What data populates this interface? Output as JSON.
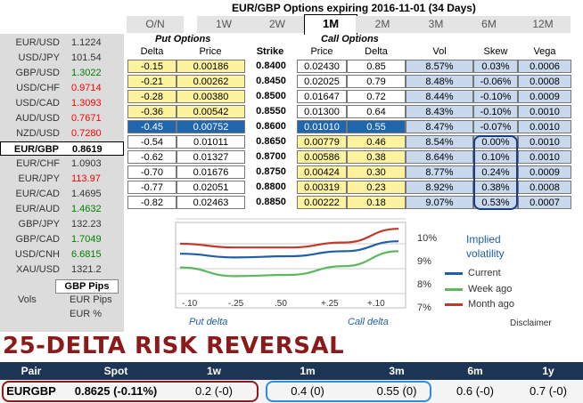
{
  "title": "EUR/GBP Options expiring 2016-11-01 (34 Days)",
  "tabs": [
    "O/N",
    "1W",
    "2W",
    "1M",
    "2M",
    "3M",
    "6M",
    "12M"
  ],
  "active_tab": "1M",
  "pairs": [
    {
      "name": "EUR/USD",
      "value": "1.1224",
      "trend": "flat"
    },
    {
      "name": "USD/JPY",
      "value": "101.54",
      "trend": "flat"
    },
    {
      "name": "GBP/USD",
      "value": "1.3022",
      "trend": "up"
    },
    {
      "name": "USD/CHF",
      "value": "0.9714",
      "trend": "down"
    },
    {
      "name": "USD/CAD",
      "value": "1.3093",
      "trend": "down"
    },
    {
      "name": "AUD/USD",
      "value": "0.7671",
      "trend": "down"
    },
    {
      "name": "NZD/USD",
      "value": "0.7280",
      "trend": "down"
    },
    {
      "name": "EUR/GBP",
      "value": "0.8619",
      "trend": "selected"
    },
    {
      "name": "EUR/CHF",
      "value": "1.0903",
      "trend": "flat"
    },
    {
      "name": "EUR/JPY",
      "value": "113.97",
      "trend": "down"
    },
    {
      "name": "EUR/CAD",
      "value": "1.4695",
      "trend": "flat"
    },
    {
      "name": "EUR/AUD",
      "value": "1.4632",
      "trend": "up"
    },
    {
      "name": "GBP/JPY",
      "value": "132.23",
      "trend": "flat"
    },
    {
      "name": "GBP/CAD",
      "value": "1.7049",
      "trend": "up"
    },
    {
      "name": "USD/CNH",
      "value": "6.6815",
      "trend": "up"
    },
    {
      "name": "XAU/USD",
      "value": "1321.2",
      "trend": "flat"
    }
  ],
  "left_footer": {
    "pips_button": "GBP Pips",
    "vols_label": "Vols",
    "eur_pips": "EUR Pips",
    "eur_pct": "EUR %"
  },
  "groups": {
    "put": "Put Options",
    "call": "Call Options"
  },
  "headers": {
    "put_delta": "Delta",
    "put_price": "Price",
    "strike": "Strike",
    "call_price": "Price",
    "call_delta": "Delta",
    "vol": "Vol",
    "skew": "Skew",
    "vega": "Vega"
  },
  "rows": [
    {
      "put_delta": "-0.15",
      "put_price": "0.00186",
      "strike": "0.8400",
      "call_price": "0.02430",
      "call_delta": "0.85",
      "vol": "8.57%",
      "skew": "0.03%",
      "vega": "0.0006"
    },
    {
      "put_delta": "-0.21",
      "put_price": "0.00262",
      "strike": "0.8450",
      "call_price": "0.02025",
      "call_delta": "0.79",
      "vol": "8.48%",
      "skew": "-0.06%",
      "vega": "0.0008"
    },
    {
      "put_delta": "-0.28",
      "put_price": "0.00380",
      "strike": "0.8500",
      "call_price": "0.01647",
      "call_delta": "0.72",
      "vol": "8.44%",
      "skew": "-0.10%",
      "vega": "0.0009"
    },
    {
      "put_delta": "-0.36",
      "put_price": "0.00542",
      "strike": "0.8550",
      "call_price": "0.01300",
      "call_delta": "0.64",
      "vol": "8.43%",
      "skew": "-0.10%",
      "vega": "0.0010"
    },
    {
      "put_delta": "-0.45",
      "put_price": "0.00752",
      "strike": "0.8600",
      "call_price": "0.01010",
      "call_delta": "0.55",
      "vol": "8.47%",
      "skew": "-0.07%",
      "vega": "0.0010"
    },
    {
      "put_delta": "-0.54",
      "put_price": "0.01011",
      "strike": "0.8650",
      "call_price": "0.00779",
      "call_delta": "0.46",
      "vol": "8.54%",
      "skew": "0.00%",
      "vega": "0.0010"
    },
    {
      "put_delta": "-0.62",
      "put_price": "0.01327",
      "strike": "0.8700",
      "call_price": "0.00586",
      "call_delta": "0.38",
      "vol": "8.64%",
      "skew": "0.10%",
      "vega": "0.0010"
    },
    {
      "put_delta": "-0.70",
      "put_price": "0.01676",
      "strike": "0.8750",
      "call_price": "0.00424",
      "call_delta": "0.30",
      "vol": "8.77%",
      "skew": "0.24%",
      "vega": "0.0009"
    },
    {
      "put_delta": "-0.77",
      "put_price": "0.02051",
      "strike": "0.8800",
      "call_price": "0.00319",
      "call_delta": "0.23",
      "vol": "8.92%",
      "skew": "0.38%",
      "vega": "0.0008"
    },
    {
      "put_delta": "-0.82",
      "put_price": "0.02463",
      "strike": "0.8850",
      "call_price": "0.00222",
      "call_delta": "0.18",
      "vol": "9.07%",
      "skew": "0.53%",
      "vega": "0.0007"
    }
  ],
  "selected_row": 4,
  "chart": {
    "x_ticks": [
      "-.10",
      "-.25",
      ".50",
      "+.25",
      "+.10"
    ],
    "y_ticks": [
      "10%",
      "9%",
      "8%",
      "7%"
    ],
    "x_left_label": "Put delta",
    "x_right_label": "Call delta",
    "legend_title_1": "Implied",
    "legend_title_2": "volatility",
    "legend": [
      "Current",
      "Week ago",
      "Month ago"
    ],
    "disclaimer": "Disclaimer"
  },
  "chart_data": {
    "type": "line",
    "x": [
      "-.10",
      "-.25",
      ".50",
      "+.25",
      "+.10"
    ],
    "ylabel": "Implied volatility",
    "ylim": [
      7,
      10
    ],
    "yunit": "%",
    "series": [
      {
        "name": "Current",
        "color": "#1f5ea8",
        "values": [
          8.6,
          8.45,
          8.5,
          8.7,
          9.1
        ]
      },
      {
        "name": "Week ago",
        "color": "#5cb85c",
        "values": [
          8.05,
          7.7,
          7.75,
          8.1,
          8.7
        ]
      },
      {
        "name": "Month ago",
        "color": "#c0392b",
        "values": [
          9.0,
          8.85,
          8.85,
          9.05,
          9.6
        ]
      }
    ]
  },
  "rr": {
    "title": "25-DELTA RISK REVERSAL",
    "headers": [
      "Pair",
      "Spot",
      "1w",
      "1m",
      "3m",
      "6m",
      "1y"
    ],
    "row": [
      "EURGBP",
      "0.8625 (-0.11%)",
      "0.2 (-0)",
      "0.4 (0)",
      "0.55 (0)",
      "0.6 (-0)",
      "0.7 (-0)"
    ]
  }
}
